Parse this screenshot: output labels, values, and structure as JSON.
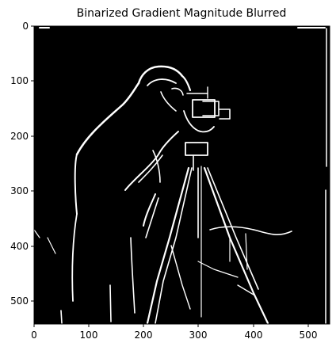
{
  "figure": {
    "title": "Binarized Gradient Magnitude Blurred",
    "image_description": "binarized edge map of a photographer with camera on tripod (white edges on black)",
    "colors": {
      "background": "#000000",
      "edges": "#ffffff",
      "frame": "#000000"
    },
    "x_axis": {
      "range": [
        0,
        540
      ],
      "ticks": [
        "0",
        "100",
        "200",
        "300",
        "400",
        "500"
      ]
    },
    "y_axis": {
      "range": [
        0,
        540
      ],
      "ticks": [
        "0",
        "100",
        "200",
        "300",
        "400",
        "500"
      ],
      "inverted": true
    }
  }
}
